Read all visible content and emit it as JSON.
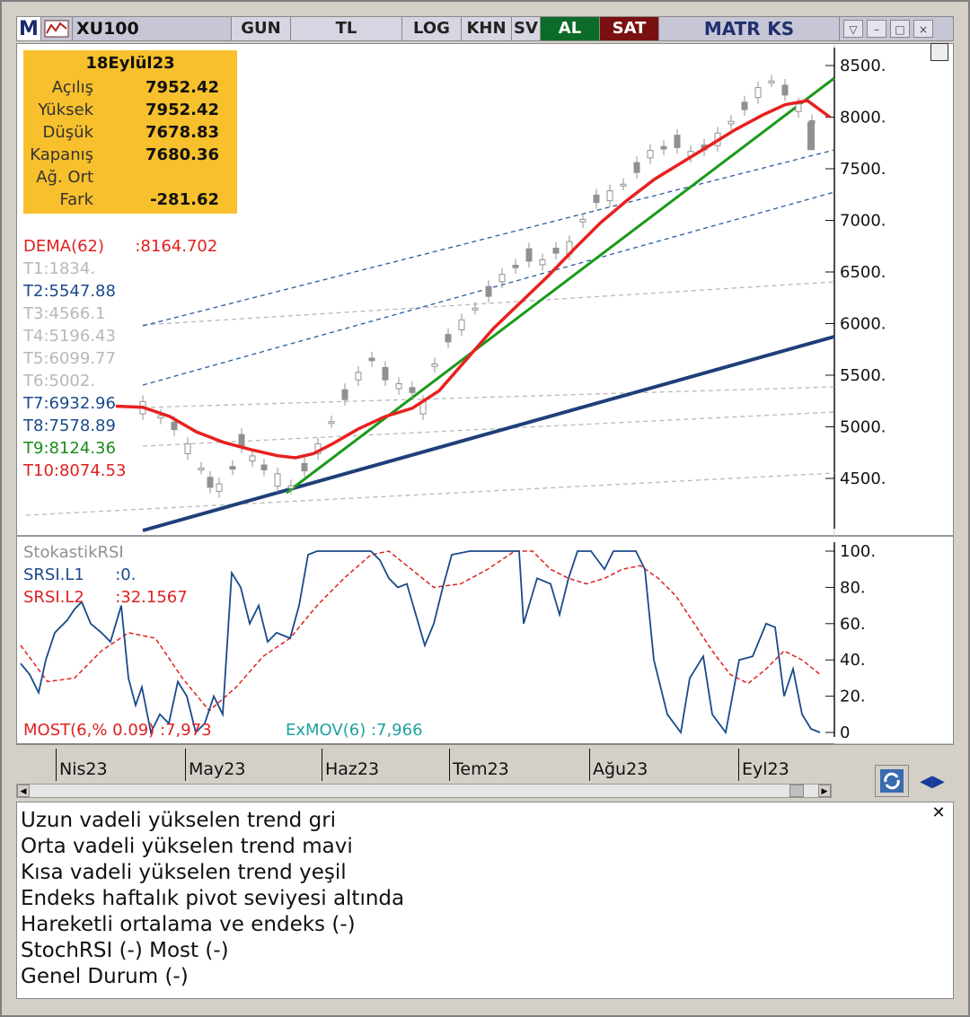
{
  "toolbar": {
    "logo": "M",
    "symbol": "XU100",
    "buttons": [
      "GUN",
      "TL",
      "LOG",
      "KHN",
      "SV"
    ],
    "buy": "AL",
    "sell": "SAT",
    "brand": "MATR KS"
  },
  "infobox": {
    "date": "18Eylül23",
    "rows": [
      {
        "label": "Açılış",
        "value": "7952.42"
      },
      {
        "label": "Yüksek",
        "value": "7952.42"
      },
      {
        "label": "Düşük",
        "value": "7678.83"
      },
      {
        "label": "Kapanış",
        "value": "7680.36"
      },
      {
        "label": "Ağ. Ort",
        "value": ""
      },
      {
        "label": "Fark",
        "value": "-281.62"
      }
    ]
  },
  "legend_top": [
    {
      "text": "DEMA(62)      :8164.702",
      "color": "#e02020"
    },
    {
      "text": "T1:1834.",
      "color": "#b8b8b8"
    },
    {
      "text": "T2:5547.88",
      "color": "#1a4a8a"
    },
    {
      "text": "T3:4566.1",
      "color": "#b8b8b8"
    },
    {
      "text": "T4:5196.43",
      "color": "#b8b8b8"
    },
    {
      "text": "T5:6099.77",
      "color": "#b8b8b8"
    },
    {
      "text": "T6:5002.",
      "color": "#b8b8b8"
    },
    {
      "text": "T7:6932.96",
      "color": "#1a4a8a"
    },
    {
      "text": "T8:7578.89",
      "color": "#1a4a8a"
    },
    {
      "text": "T9:8124.36",
      "color": "#1a8a1a"
    },
    {
      "text": "T10:8074.53",
      "color": "#e02020"
    }
  ],
  "legend_bottom": [
    {
      "text": "StokastikRSI",
      "color": "#909090"
    },
    {
      "text": "SRSI.L1      :0.",
      "color": "#1a4a8a"
    },
    {
      "text": "SRSI.L2      :32.1567",
      "color": "#e02020"
    }
  ],
  "most": {
    "text": "MOST(6,% 0.09) :7,973",
    "color": "#e02020"
  },
  "exmov": {
    "text": "ExMOV(6)      :7,966",
    "color": "#20a0a0"
  },
  "colors": {
    "candle": "#909090",
    "dema": "#e82020",
    "long_trend": "#1f3f7a",
    "mid_trend": "#2a5aa0",
    "short_trend": "#1a9a1a",
    "srsi_l1": "#1a4a8a",
    "srsi_l2": "#e02020"
  },
  "chart_data": [
    {
      "type": "candlestick",
      "title": "XU100",
      "x_categories": [
        "Nis23",
        "May23",
        "Haz23",
        "Tem23",
        "Ağu23",
        "Eyl23"
      ],
      "y_ticks": [
        "8500.",
        "8000.",
        "7500.",
        "7000.",
        "6500.",
        "6000.",
        "5500.",
        "5000.",
        "4500."
      ],
      "ylim": [
        4250,
        8600
      ],
      "series": [
        {
          "name": "DEMA(62)",
          "value": 8164.702
        },
        {
          "name": "T9",
          "value": 8124.36
        },
        {
          "name": "T10",
          "value": 8074.53
        }
      ],
      "last_candle": {
        "open": 7952.42,
        "high": 7952.42,
        "low": 7678.83,
        "close": 7680.36
      }
    },
    {
      "type": "line",
      "title": "StokastikRSI",
      "y_ticks": [
        "100.",
        "80.",
        "60.",
        "40.",
        "20.",
        "0"
      ],
      "ylim": [
        0,
        100
      ],
      "series": [
        {
          "name": "SRSI.L1",
          "last": 0
        },
        {
          "name": "SRSI.L2",
          "last": 32.1567
        }
      ]
    }
  ],
  "comments": [
    "Uzun vadeli yükselen trend gri",
    "Orta vadeli yükselen trend mavi",
    "Kısa vadeli yükselen trend yeşil",
    "Endeks haftalık pivot seviyesi altında",
    "Hareketli ortalama ve endeks (-)",
    "StochRSI (-) Most (-)",
    "Genel Durum (-)"
  ]
}
